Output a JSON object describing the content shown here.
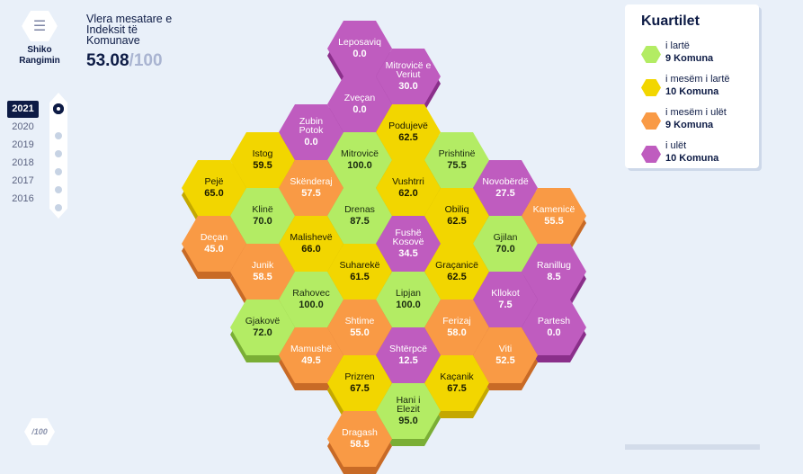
{
  "menu": {
    "label": "Shiko Rangimin",
    "icon": "list-icon"
  },
  "header": {
    "title": "Vlera mesatare e Indeksit të Komunave",
    "score": "53.08",
    "max": "/100"
  },
  "years": [
    "2021",
    "2020",
    "2019",
    "2018",
    "2017",
    "2016"
  ],
  "active_year": "2021",
  "legend": {
    "title": "Kuartilet",
    "items": [
      {
        "label": "i lartë",
        "count": "9 Komuna",
        "color": "#b3ec64"
      },
      {
        "label": "i mesëm i lartë",
        "count": "10 Komuna",
        "color": "#f2d600"
      },
      {
        "label": "i mesëm i ulët",
        "count": "9 Komuna",
        "color": "#f99a45"
      },
      {
        "label": "i ulët",
        "count": "10 Komuna",
        "color": "#bf5cbf"
      }
    ]
  },
  "colors": {
    "1": [
      "#b3ec64",
      "#7aae35",
      "#1a2a10"
    ],
    "2": [
      "#f2d600",
      "#c4a800",
      "#1a1a00"
    ],
    "3": [
      "#f99a45",
      "#c86a26",
      "#ffffff"
    ],
    "4": [
      "#bf5cbf",
      "#8a2f8a",
      "#ffffff"
    ]
  },
  "municipalities": [
    {
      "name": "Leposaviq",
      "value": "0.0",
      "q": 4
    },
    {
      "name": "Mitrovicë e Veriut",
      "value": "30.0",
      "q": 4
    },
    {
      "name": "Zveçan",
      "value": "0.0",
      "q": 4
    },
    {
      "name": "Zubin Potok",
      "value": "0.0",
      "q": 4
    },
    {
      "name": "Podujevë",
      "value": "62.5",
      "q": 2
    },
    {
      "name": "Istog",
      "value": "59.5",
      "q": 2
    },
    {
      "name": "Mitrovicë",
      "value": "100.0",
      "q": 1
    },
    {
      "name": "Prishtinë",
      "value": "75.5",
      "q": 1
    },
    {
      "name": "Pejë",
      "value": "65.0",
      "q": 2
    },
    {
      "name": "Skënderaj",
      "value": "57.5",
      "q": 3
    },
    {
      "name": "Vushtrri",
      "value": "62.0",
      "q": 2
    },
    {
      "name": "Novobërdë",
      "value": "27.5",
      "q": 4
    },
    {
      "name": "Klinë",
      "value": "70.0",
      "q": 1
    },
    {
      "name": "Drenas",
      "value": "87.5",
      "q": 1
    },
    {
      "name": "Obiliq",
      "value": "62.5",
      "q": 2
    },
    {
      "name": "Kamenicë",
      "value": "55.5",
      "q": 3
    },
    {
      "name": "Deçan",
      "value": "45.0",
      "q": 3
    },
    {
      "name": "Malishevë",
      "value": "66.0",
      "q": 2
    },
    {
      "name": "Fushë Kosovë",
      "value": "34.5",
      "q": 4
    },
    {
      "name": "Gjilan",
      "value": "70.0",
      "q": 1
    },
    {
      "name": "Junik",
      "value": "58.5",
      "q": 3
    },
    {
      "name": "Suharekë",
      "value": "61.5",
      "q": 2
    },
    {
      "name": "Graçanicë",
      "value": "62.5",
      "q": 2
    },
    {
      "name": "Ranillug",
      "value": "8.5",
      "q": 4
    },
    {
      "name": "Rahovec",
      "value": "100.0",
      "q": 1
    },
    {
      "name": "Lipjan",
      "value": "100.0",
      "q": 1
    },
    {
      "name": "Kllokot",
      "value": "7.5",
      "q": 4
    },
    {
      "name": "Gjakovë",
      "value": "72.0",
      "q": 1
    },
    {
      "name": "Shtime",
      "value": "55.0",
      "q": 3
    },
    {
      "name": "Ferizaj",
      "value": "58.0",
      "q": 3
    },
    {
      "name": "Partesh",
      "value": "0.0",
      "q": 4
    },
    {
      "name": "Mamushë",
      "value": "49.5",
      "q": 3
    },
    {
      "name": "Shtërpcë",
      "value": "12.5",
      "q": 4
    },
    {
      "name": "Viti",
      "value": "52.5",
      "q": 3
    },
    {
      "name": "Prizren",
      "value": "67.5",
      "q": 2
    },
    {
      "name": "Kaçanik",
      "value": "67.5",
      "q": 2
    },
    {
      "name": "Hani i Elezit",
      "value": "95.0",
      "q": 1
    },
    {
      "name": "Dragash",
      "value": "58.5",
      "q": 3
    }
  ],
  "logo": "/100"
}
